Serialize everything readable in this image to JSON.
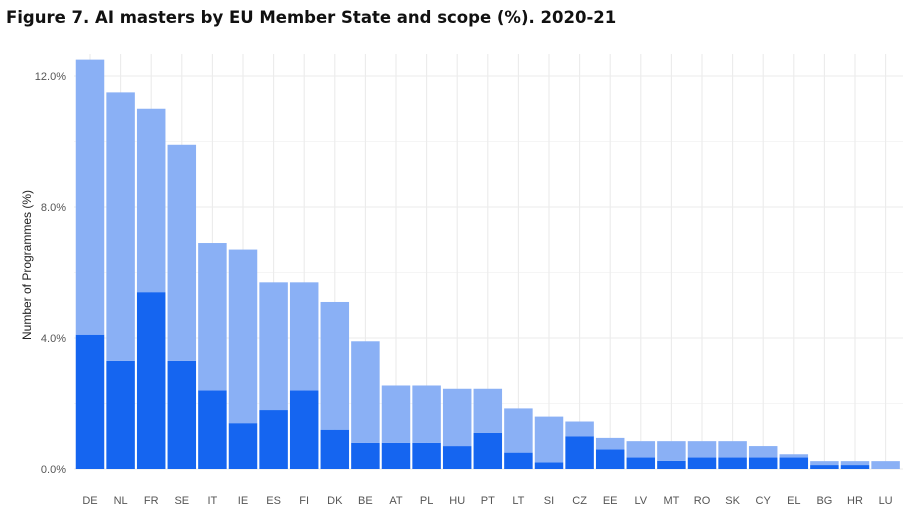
{
  "figure_title": "Figure 7. AI masters by EU Member State and scope (%). 2020-21",
  "colors": {
    "background": "#ffffff",
    "grid": "#ebebeb",
    "series_dark": "#1565f0",
    "series_light": "#8ab0f5"
  },
  "chart_data": {
    "type": "bar",
    "stacked": true,
    "categories": [
      "DE",
      "NL",
      "FR",
      "SE",
      "IT",
      "IE",
      "ES",
      "FI",
      "DK",
      "BE",
      "AT",
      "PL",
      "HU",
      "PT",
      "LT",
      "SI",
      "CZ",
      "EE",
      "LV",
      "MT",
      "RO",
      "SK",
      "CY",
      "EL",
      "BG",
      "HR",
      "LU"
    ],
    "series": [
      {
        "values": [
          4.1,
          3.3,
          5.4,
          3.3,
          2.4,
          1.4,
          1.8,
          2.4,
          1.2,
          0.8,
          0.8,
          0.8,
          0.7,
          1.1,
          0.5,
          0.2,
          1.0,
          0.6,
          0.35,
          0.25,
          0.35,
          0.35,
          0.35,
          0.35,
          0.12,
          0.12,
          0.0
        ]
      },
      {
        "values": [
          8.4,
          8.2,
          5.6,
          6.6,
          4.5,
          5.3,
          3.9,
          3.3,
          3.9,
          3.1,
          1.75,
          1.75,
          1.75,
          1.35,
          1.35,
          1.4,
          0.45,
          0.35,
          0.5,
          0.6,
          0.5,
          0.5,
          0.35,
          0.1,
          0.12,
          0.12,
          0.24
        ]
      }
    ],
    "ylabel": "Number of Programmes (%)",
    "xlabel": "",
    "ylim": [
      0,
      12.4
    ],
    "yticks": [
      0,
      4,
      8,
      12
    ],
    "ytick_labels": [
      "0.0%",
      "4.0%",
      "8.0%",
      "12.0%"
    ],
    "grid": true,
    "legend": "none"
  }
}
